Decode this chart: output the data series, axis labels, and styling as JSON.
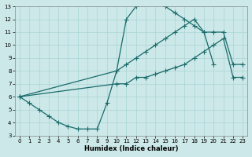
{
  "bg_color": "#cce8e8",
  "grid_color": "#aad4d4",
  "line_color": "#1a6b6b",
  "xlabel": "Humidex (Indice chaleur)",
  "xlim": [
    -0.5,
    23.5
  ],
  "ylim": [
    3,
    13
  ],
  "xticks": [
    0,
    1,
    2,
    3,
    4,
    5,
    6,
    7,
    8,
    9,
    10,
    11,
    12,
    13,
    14,
    15,
    16,
    17,
    18,
    19,
    20,
    21,
    22,
    23
  ],
  "yticks": [
    3,
    4,
    5,
    6,
    7,
    8,
    9,
    10,
    11,
    12,
    13
  ],
  "s1_x": [
    0,
    1,
    2,
    3,
    4,
    5,
    6,
    7,
    8,
    9,
    10,
    11,
    12,
    13,
    14,
    15,
    16,
    17,
    18,
    19,
    20
  ],
  "s1_y": [
    6.0,
    5.5,
    5.0,
    4.5,
    4.0,
    3.7,
    3.5,
    3.5,
    3.5,
    5.5,
    8.0,
    12.0,
    13.0,
    13.5,
    13.5,
    13.0,
    12.5,
    12.0,
    11.5,
    11.0,
    8.5
  ],
  "s2_x": [
    0,
    10,
    11,
    12,
    13,
    14,
    15,
    16,
    17,
    18,
    19,
    20,
    21,
    22,
    23
  ],
  "s2_y": [
    6.0,
    8.0,
    8.5,
    9.0,
    9.5,
    10.0,
    10.5,
    11.0,
    11.5,
    12.0,
    11.0,
    11.0,
    11.0,
    8.5,
    8.5
  ],
  "s3_x": [
    0,
    10,
    11,
    12,
    13,
    14,
    15,
    16,
    17,
    18,
    19,
    20,
    21,
    22,
    23
  ],
  "s3_y": [
    6.0,
    7.0,
    7.0,
    7.5,
    7.5,
    7.75,
    8.0,
    8.25,
    8.5,
    9.0,
    9.5,
    10.0,
    10.5,
    7.5,
    7.5
  ]
}
